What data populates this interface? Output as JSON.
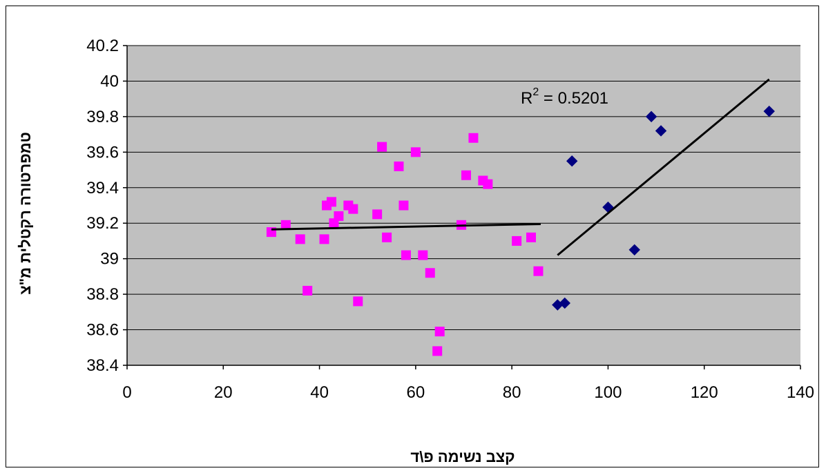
{
  "chart_data": {
    "type": "scatter",
    "xlabel": "קצב נשימה פ\\ד",
    "ylabel": "טמפרטורה רקטלית מ\"צ",
    "xlim": [
      0,
      140
    ],
    "ylim": [
      38.4,
      40.2
    ],
    "x_ticks": [
      "0",
      "20",
      "40",
      "60",
      "80",
      "100",
      "120",
      "140"
    ],
    "y_ticks": [
      "38.4",
      "38.6",
      "38.8",
      "39",
      "39.2",
      "39.4",
      "39.6",
      "39.8",
      "40",
      "40.2"
    ],
    "grid": "horizontal",
    "plot_background": "#c0c0c0",
    "annotation": {
      "base": "R",
      "superscript": "2",
      "rest": " = 0.5201"
    },
    "series": [
      {
        "marker": "square",
        "color": "#ff00ff",
        "points": [
          [
            30,
            39.15
          ],
          [
            33,
            39.19
          ],
          [
            36,
            39.11
          ],
          [
            37.5,
            38.82
          ],
          [
            41,
            39.11
          ],
          [
            41.5,
            39.3
          ],
          [
            42.5,
            39.32
          ],
          [
            43,
            39.2
          ],
          [
            44,
            39.24
          ],
          [
            46,
            39.3
          ],
          [
            47,
            39.28
          ],
          [
            48,
            38.76
          ],
          [
            52,
            39.25
          ],
          [
            53,
            39.63
          ],
          [
            54,
            39.12
          ],
          [
            56.5,
            39.52
          ],
          [
            57.5,
            39.3
          ],
          [
            58,
            39.02
          ],
          [
            60,
            39.6
          ],
          [
            61.5,
            39.02
          ],
          [
            63,
            38.92
          ],
          [
            64.5,
            38.48
          ],
          [
            65,
            38.59
          ],
          [
            69.5,
            39.19
          ],
          [
            70.5,
            39.47
          ],
          [
            72,
            39.68
          ],
          [
            74,
            39.44
          ],
          [
            75,
            39.42
          ],
          [
            81,
            39.1
          ],
          [
            84,
            39.12
          ],
          [
            85.5,
            38.93
          ]
        ],
        "trendline": [
          [
            30,
            39.165
          ],
          [
            86,
            39.195
          ]
        ]
      },
      {
        "marker": "diamond",
        "color": "#000080",
        "points": [
          [
            89.5,
            38.74
          ],
          [
            91,
            38.75
          ],
          [
            92.5,
            39.55
          ],
          [
            100,
            39.29
          ],
          [
            105.5,
            39.05
          ],
          [
            109,
            39.8
          ],
          [
            111,
            39.72
          ],
          [
            133.5,
            39.83
          ]
        ],
        "trendline": [
          [
            89.5,
            39.02
          ],
          [
            133.5,
            40.01
          ]
        ]
      }
    ]
  }
}
